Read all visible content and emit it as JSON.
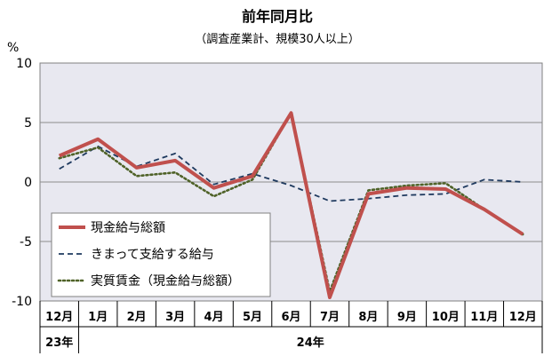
{
  "chart_data": {
    "type": "line",
    "title": "前年同月比",
    "subtitle": "（調査産業計、規模30人以上）",
    "ylabel": "%",
    "ylim": [
      -10,
      10
    ],
    "yticks": [
      10,
      5,
      0,
      -5,
      -10
    ],
    "categories": [
      "12月",
      "1月",
      "2月",
      "3月",
      "4月",
      "5月",
      "6月",
      "7月",
      "8月",
      "9月",
      "10月",
      "11月",
      "12月"
    ],
    "year_labels": [
      "23年",
      "24年"
    ],
    "grid": true,
    "legend_position": "bottom-left",
    "series": [
      {
        "name": "現金給与総額",
        "color": "#c0504d",
        "style": "solid",
        "values": [
          2.2,
          3.6,
          1.2,
          1.8,
          -0.5,
          0.5,
          5.8,
          -9.7,
          -1.0,
          -0.5,
          -0.6,
          -2.3,
          -4.4
        ]
      },
      {
        "name": "きまって支給する給与",
        "color": "#1f3a5f",
        "style": "dashed",
        "values": [
          1.1,
          3.0,
          1.3,
          2.4,
          -0.2,
          0.7,
          -0.3,
          -1.6,
          -1.4,
          -1.1,
          -1.0,
          0.2,
          0.0
        ]
      },
      {
        "name": "実質賃金（現金給与総額）",
        "color": "#4f6228",
        "style": "dotted",
        "values": [
          2.0,
          2.9,
          0.5,
          0.8,
          -1.2,
          0.2,
          5.8,
          -9.2,
          -0.7,
          -0.3,
          -0.1,
          -2.3,
          -4.4
        ]
      }
    ]
  }
}
